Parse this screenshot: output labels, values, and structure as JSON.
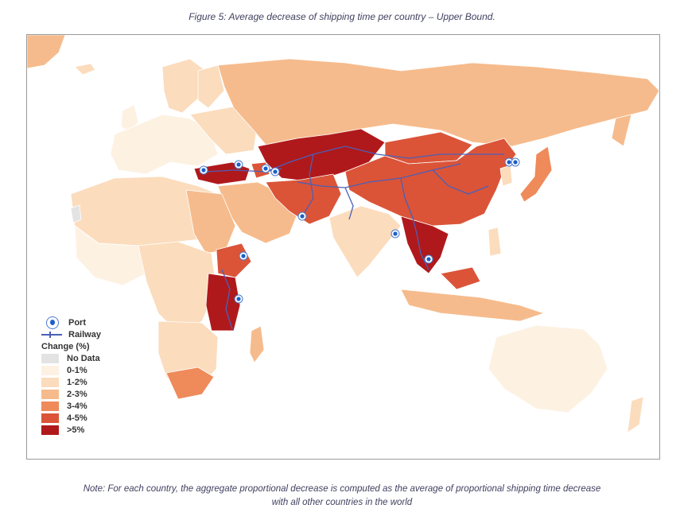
{
  "figure": {
    "title": "Figure 5: Average decrease of shipping time per country – Upper Bound.",
    "note_line1": "Note: For each country, the aggregate proportional decrease is computed as the average of proportional shipping time decrease",
    "note_line2": "with all other countries in the world"
  },
  "legend": {
    "port_label": "Port",
    "railway_label": "Railway",
    "change_title": "Change (%)",
    "classes": [
      {
        "label": "No Data",
        "color": "#e3e3e3"
      },
      {
        "label": "0-1%",
        "color": "#fdf1e2"
      },
      {
        "label": "1-2%",
        "color": "#fbdcbd"
      },
      {
        "label": "2-3%",
        "color": "#f6bb8c"
      },
      {
        "label": "3-4%",
        "color": "#ef8a5a"
      },
      {
        "label": "4-5%",
        "color": "#db5438"
      },
      {
        "label": ">5%",
        "color": "#b0191b"
      }
    ]
  },
  "colors": {
    "railway": "#4b5fb8",
    "port": "#1e5fc9",
    "border": "#ffffff"
  }
}
